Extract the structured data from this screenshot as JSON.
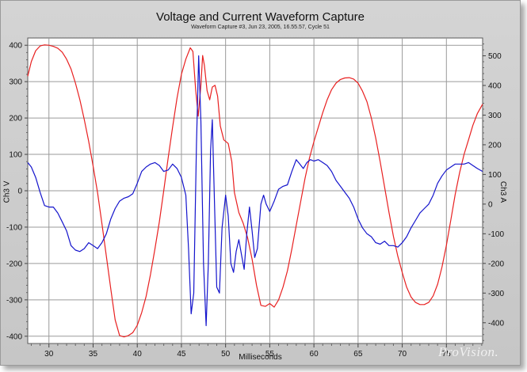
{
  "chart_data": {
    "type": "line",
    "title": "Voltage and Current Waveform Capture",
    "subtitle": "Waveform Capture #3, Jun 23, 2005, 16.55.57, Cycle 51",
    "xlabel": "Milliseconds",
    "ylabel_left": "Ch3 V",
    "ylabel_right": "Ch3 A",
    "xlim": [
      27.6,
      79.1
    ],
    "ylim_left": [
      -420,
      420
    ],
    "ylim_right": [
      -470,
      560
    ],
    "x_ticks": [
      30,
      35,
      40,
      45,
      50,
      55,
      60,
      65,
      70,
      75
    ],
    "y_left_ticks": [
      400,
      300,
      200,
      100,
      0,
      -100,
      -200,
      -300,
      -400
    ],
    "y_right_ticks": [
      500,
      400,
      300,
      200,
      100,
      0,
      -100,
      -200,
      -300,
      -400
    ],
    "grid": true,
    "series": [
      {
        "axis": "left",
        "color": "#e82020",
        "points": [
          [
            27.6,
            315
          ],
          [
            28.0,
            355
          ],
          [
            28.5,
            385
          ],
          [
            29.0,
            398
          ],
          [
            29.5,
            401
          ],
          [
            30.0,
            400
          ],
          [
            30.5,
            397
          ],
          [
            31.0,
            392
          ],
          [
            31.5,
            381
          ],
          [
            32.0,
            362
          ],
          [
            32.5,
            335
          ],
          [
            33.0,
            296
          ],
          [
            33.5,
            250
          ],
          [
            34.0,
            196
          ],
          [
            34.5,
            136
          ],
          [
            35.0,
            68
          ],
          [
            35.5,
            -5
          ],
          [
            36.0,
            -90
          ],
          [
            36.5,
            -180
          ],
          [
            37.0,
            -270
          ],
          [
            37.5,
            -355
          ],
          [
            38.0,
            -398
          ],
          [
            38.5,
            -402
          ],
          [
            39.0,
            -398
          ],
          [
            39.5,
            -390
          ],
          [
            40.0,
            -370
          ],
          [
            40.5,
            -335
          ],
          [
            41.0,
            -290
          ],
          [
            41.5,
            -230
          ],
          [
            42.0,
            -160
          ],
          [
            42.5,
            -85
          ],
          [
            43.0,
            0
          ],
          [
            43.5,
            90
          ],
          [
            44.0,
            175
          ],
          [
            44.5,
            255
          ],
          [
            45.0,
            320
          ],
          [
            45.5,
            362
          ],
          [
            46.0,
            393
          ],
          [
            46.3,
            383
          ],
          [
            46.6,
            280
          ],
          [
            46.9,
            205
          ],
          [
            47.2,
            290
          ],
          [
            47.4,
            372
          ],
          [
            47.6,
            345
          ],
          [
            47.9,
            275
          ],
          [
            48.2,
            250
          ],
          [
            48.5,
            285
          ],
          [
            48.8,
            290
          ],
          [
            49.1,
            260
          ],
          [
            49.4,
            178
          ],
          [
            49.8,
            140
          ],
          [
            50.3,
            130
          ],
          [
            50.7,
            80
          ],
          [
            51.0,
            -5
          ],
          [
            51.5,
            -60
          ],
          [
            52.0,
            -90
          ],
          [
            52.5,
            -130
          ],
          [
            53.0,
            -188
          ],
          [
            53.5,
            -260
          ],
          [
            54.0,
            -315
          ],
          [
            54.5,
            -318
          ],
          [
            55.0,
            -310
          ],
          [
            55.5,
            -320
          ],
          [
            56.0,
            -300
          ],
          [
            56.5,
            -265
          ],
          [
            57.0,
            -220
          ],
          [
            57.5,
            -160
          ],
          [
            58.0,
            -95
          ],
          [
            58.5,
            -30
          ],
          [
            59.0,
            35
          ],
          [
            59.5,
            90
          ],
          [
            60.0,
            135
          ],
          [
            60.5,
            175
          ],
          [
            61.0,
            215
          ],
          [
            61.5,
            250
          ],
          [
            62.0,
            278
          ],
          [
            62.5,
            296
          ],
          [
            63.0,
            306
          ],
          [
            63.5,
            310
          ],
          [
            64.0,
            311
          ],
          [
            64.5,
            307
          ],
          [
            65.0,
            296
          ],
          [
            65.5,
            274
          ],
          [
            66.0,
            245
          ],
          [
            66.5,
            200
          ],
          [
            67.0,
            145
          ],
          [
            67.5,
            80
          ],
          [
            68.0,
            10
          ],
          [
            68.5,
            -60
          ],
          [
            69.0,
            -125
          ],
          [
            69.5,
            -180
          ],
          [
            70.0,
            -225
          ],
          [
            70.5,
            -265
          ],
          [
            71.0,
            -292
          ],
          [
            71.5,
            -307
          ],
          [
            72.0,
            -313
          ],
          [
            72.5,
            -313
          ],
          [
            73.0,
            -307
          ],
          [
            73.5,
            -289
          ],
          [
            74.0,
            -257
          ],
          [
            74.5,
            -210
          ],
          [
            75.0,
            -150
          ],
          [
            75.5,
            -80
          ],
          [
            76.0,
            -10
          ],
          [
            76.5,
            50
          ],
          [
            77.0,
            100
          ],
          [
            77.5,
            140
          ],
          [
            78.0,
            180
          ],
          [
            78.5,
            212
          ],
          [
            79.1,
            238
          ]
        ]
      },
      {
        "axis": "right",
        "color": "#1414cc",
        "points": [
          [
            27.6,
            140
          ],
          [
            28.0,
            125
          ],
          [
            28.5,
            90
          ],
          [
            29.0,
            40
          ],
          [
            29.5,
            -5
          ],
          [
            30.0,
            -10
          ],
          [
            30.5,
            -10
          ],
          [
            31.0,
            -30
          ],
          [
            31.5,
            -60
          ],
          [
            32.0,
            -90
          ],
          [
            32.5,
            -140
          ],
          [
            33.0,
            -155
          ],
          [
            33.5,
            -160
          ],
          [
            34.0,
            -150
          ],
          [
            34.5,
            -130
          ],
          [
            35.0,
            -140
          ],
          [
            35.5,
            -150
          ],
          [
            36.0,
            -130
          ],
          [
            36.5,
            -100
          ],
          [
            37.0,
            -50
          ],
          [
            37.5,
            -15
          ],
          [
            38.0,
            10
          ],
          [
            38.5,
            20
          ],
          [
            39.0,
            25
          ],
          [
            39.5,
            35
          ],
          [
            40.0,
            70
          ],
          [
            40.5,
            110
          ],
          [
            41.0,
            125
          ],
          [
            41.5,
            135
          ],
          [
            42.0,
            140
          ],
          [
            42.5,
            130
          ],
          [
            43.0,
            110
          ],
          [
            43.5,
            115
          ],
          [
            44.0,
            135
          ],
          [
            44.5,
            120
          ],
          [
            45.0,
            90
          ],
          [
            45.5,
            30
          ],
          [
            45.8,
            -150
          ],
          [
            46.1,
            -370
          ],
          [
            46.4,
            -300
          ],
          [
            46.7,
            200
          ],
          [
            46.95,
            500
          ],
          [
            47.2,
            280
          ],
          [
            47.5,
            -200
          ],
          [
            47.8,
            -410
          ],
          [
            48.05,
            -200
          ],
          [
            48.3,
            180
          ],
          [
            48.5,
            285
          ],
          [
            48.75,
            0
          ],
          [
            49.0,
            -280
          ],
          [
            49.3,
            -300
          ],
          [
            49.6,
            -80
          ],
          [
            50.0,
            30
          ],
          [
            50.3,
            -40
          ],
          [
            50.6,
            -200
          ],
          [
            50.9,
            -230
          ],
          [
            51.2,
            -160
          ],
          [
            51.5,
            -120
          ],
          [
            51.8,
            -170
          ],
          [
            52.1,
            -220
          ],
          [
            52.4,
            -100
          ],
          [
            52.7,
            -10
          ],
          [
            53.0,
            -90
          ],
          [
            53.3,
            -180
          ],
          [
            53.6,
            -150
          ],
          [
            54.0,
            0
          ],
          [
            54.3,
            30
          ],
          [
            54.6,
            0
          ],
          [
            55.0,
            -25
          ],
          [
            55.5,
            10
          ],
          [
            56.0,
            50
          ],
          [
            56.5,
            60
          ],
          [
            57.0,
            65
          ],
          [
            57.5,
            110
          ],
          [
            58.0,
            150
          ],
          [
            58.4,
            135
          ],
          [
            58.8,
            120
          ],
          [
            59.2,
            140
          ],
          [
            59.6,
            150
          ],
          [
            60.0,
            145
          ],
          [
            60.5,
            150
          ],
          [
            61.0,
            140
          ],
          [
            61.5,
            130
          ],
          [
            62.0,
            110
          ],
          [
            62.5,
            80
          ],
          [
            63.0,
            60
          ],
          [
            63.5,
            40
          ],
          [
            64.0,
            20
          ],
          [
            64.5,
            -10
          ],
          [
            65.0,
            -50
          ],
          [
            65.5,
            -80
          ],
          [
            66.0,
            -100
          ],
          [
            66.5,
            -110
          ],
          [
            67.0,
            -130
          ],
          [
            67.5,
            -135
          ],
          [
            68.0,
            -125
          ],
          [
            68.5,
            -140
          ],
          [
            69.0,
            -140
          ],
          [
            69.5,
            -145
          ],
          [
            70.0,
            -130
          ],
          [
            70.5,
            -110
          ],
          [
            71.0,
            -80
          ],
          [
            71.5,
            -55
          ],
          [
            72.0,
            -30
          ],
          [
            72.5,
            -15
          ],
          [
            73.0,
            0
          ],
          [
            73.5,
            30
          ],
          [
            74.0,
            70
          ],
          [
            74.5,
            95
          ],
          [
            75.0,
            115
          ],
          [
            75.5,
            125
          ],
          [
            76.0,
            135
          ],
          [
            76.5,
            135
          ],
          [
            77.0,
            135
          ],
          [
            77.5,
            140
          ],
          [
            78.0,
            130
          ],
          [
            78.5,
            120
          ],
          [
            79.1,
            110
          ]
        ]
      }
    ]
  },
  "logo_text": "ProVision."
}
